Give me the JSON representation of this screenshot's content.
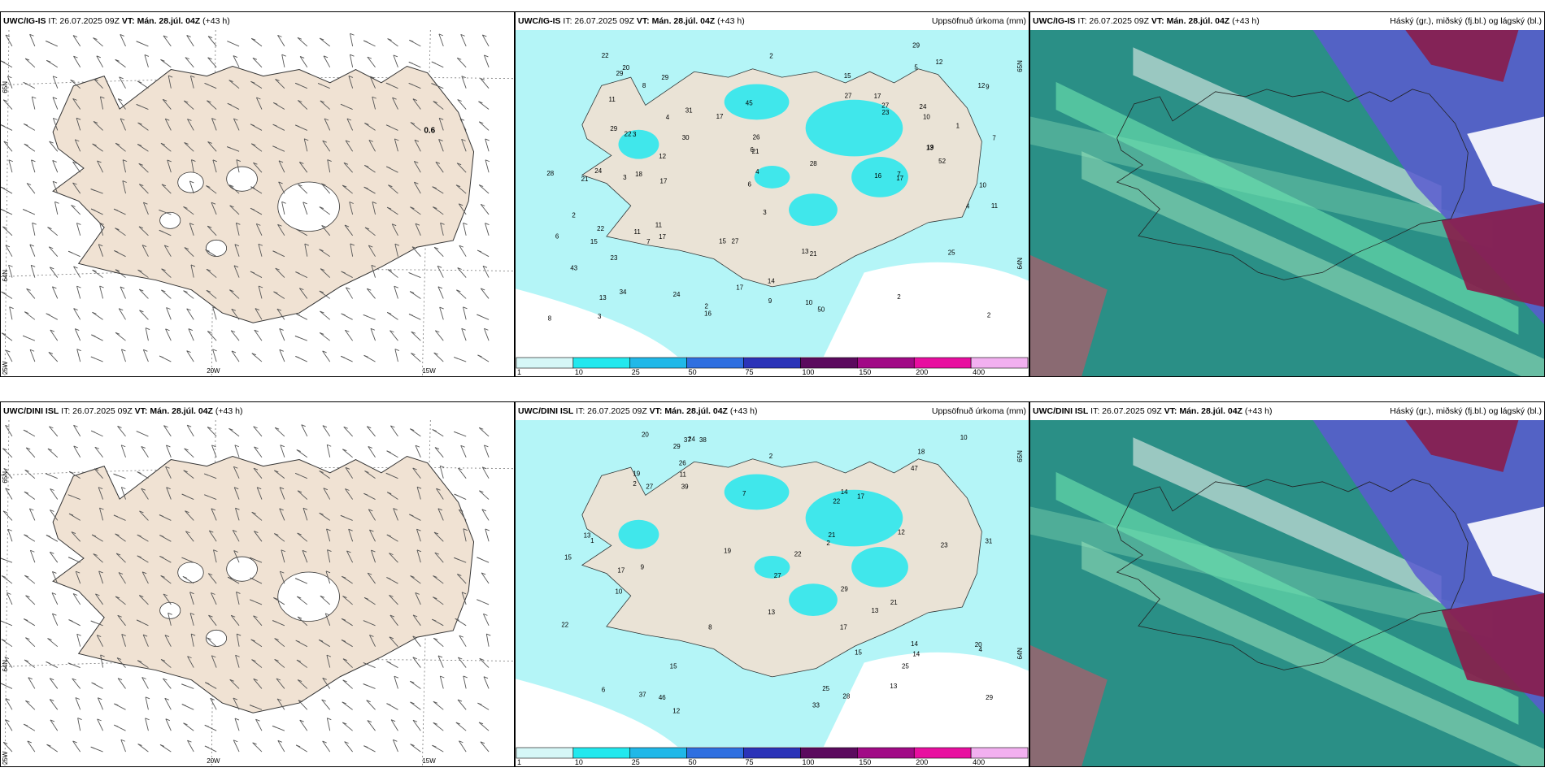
{
  "colors": {
    "land": "#f0e2d3",
    "precip_light": "#b4f5f7",
    "precip_mid": "#22e8ee",
    "cloud_high": "#e6eee9",
    "cloud_mid": "#5a5ad0",
    "cloud_low": "#8a1d4a",
    "green_dark": "#2a8f86",
    "green_light": "#6fe6b0"
  },
  "panels": [
    {
      "model": "UWC/IG-IS",
      "it": "IT: 26.07.2025 09Z",
      "vt": "VT: Mán. 28.júl. 04Z",
      "lead": "(+43 h)",
      "right": "",
      "type": "wind",
      "label": "0.6",
      "lat1": "65N",
      "lat2": "64N",
      "lon0": "25W",
      "lon1": "20W",
      "lon2": "15W"
    },
    {
      "model": "UWC/IG-IS",
      "it": "IT: 26.07.2025 09Z",
      "vt": "VT: Mán. 28.júl. 04Z",
      "lead": "(+43 h)",
      "right": "Uppsöfnuð úrkoma (mm)",
      "type": "precip",
      "lat1": "65N",
      "lat2": "64N"
    },
    {
      "model": "UWC/IG-IS",
      "it": "IT: 26.07.2025 09Z",
      "vt": "VT: Mán. 28.júl. 04Z",
      "lead": "(+43 h)",
      "right": "Háský (gr.), miðský (fj.bl.) og lágský (bl.)",
      "type": "cloud"
    },
    {
      "model": "UWC/DINI ISL",
      "it": "IT: 26.07.2025 09Z",
      "vt": "VT: Mán. 28.júl. 04Z",
      "lead": "(+43 h)",
      "right": "",
      "type": "wind",
      "label": "",
      "lat1": "65N",
      "lat2": "64N",
      "lon0": "25W",
      "lon1": "20W",
      "lon2": "15W"
    },
    {
      "model": "UWC/DINI ISL",
      "it": "IT: 26.07.2025 09Z",
      "vt": "VT: Mán. 28.júl. 04Z",
      "lead": "(+43 h)",
      "right": "Uppsöfnuð úrkoma (mm)",
      "type": "precip",
      "lat1": "65N",
      "lat2": "64N"
    },
    {
      "model": "UWC/DINI ISL",
      "it": "IT: 26.07.2025 09Z",
      "vt": "VT: Mán. 28.júl. 04Z",
      "lead": "(+43 h)",
      "right": "Háský (gr.), miðský (fj.bl.) og lágský (bl.)",
      "type": "cloud"
    }
  ],
  "colorbar": {
    "ticks": [
      "1",
      "10",
      "25",
      "50",
      "75",
      "100",
      "150",
      "200",
      "400"
    ],
    "colors": [
      "#d6f7f7",
      "#22e8ee",
      "#20b8e8",
      "#2f6fe0",
      "#2b33b8",
      "#5b0a5e",
      "#a10a86",
      "#e80fa0",
      "#f2b0f0"
    ]
  },
  "precip_numbers_top": [
    "16",
    "2",
    "7",
    "3",
    "14",
    "17",
    "6",
    "11",
    "27",
    "10",
    "7",
    "8",
    "2",
    "1",
    "13",
    "12",
    "21",
    "26",
    "24",
    "28",
    "13",
    "11",
    "11",
    "17",
    "15",
    "25",
    "17",
    "22",
    "12",
    "10",
    "19",
    "9",
    "16",
    "17",
    "22",
    "30",
    "29",
    "2",
    "6",
    "4",
    "15",
    "13",
    "11",
    "17",
    "15",
    "43",
    "20",
    "22",
    "28",
    "27",
    "17",
    "34",
    "31",
    "29",
    "52",
    "18",
    "29",
    "21",
    "23",
    "10",
    "29",
    "24",
    "45",
    "50",
    "23",
    "21",
    "24",
    "27",
    "5",
    "4",
    "3",
    "7",
    "12",
    "8",
    "4",
    "3",
    "2",
    "9",
    "3",
    "2",
    "6"
  ],
  "precip_numbers_bottom": [
    "7",
    "13",
    "12",
    "15",
    "2",
    "17",
    "14",
    "12",
    "21",
    "10",
    "8",
    "22",
    "15",
    "21",
    "20",
    "14",
    "18",
    "13",
    "25",
    "23",
    "37",
    "24",
    "46",
    "17",
    "13",
    "29",
    "15",
    "38",
    "37",
    "26",
    "27",
    "14",
    "13",
    "22",
    "28",
    "29",
    "47",
    "29",
    "39",
    "25",
    "31",
    "19",
    "11",
    "20",
    "33",
    "19",
    "10",
    "27",
    "22",
    "9",
    "2",
    "4",
    "17",
    "6",
    "2",
    "1"
  ]
}
